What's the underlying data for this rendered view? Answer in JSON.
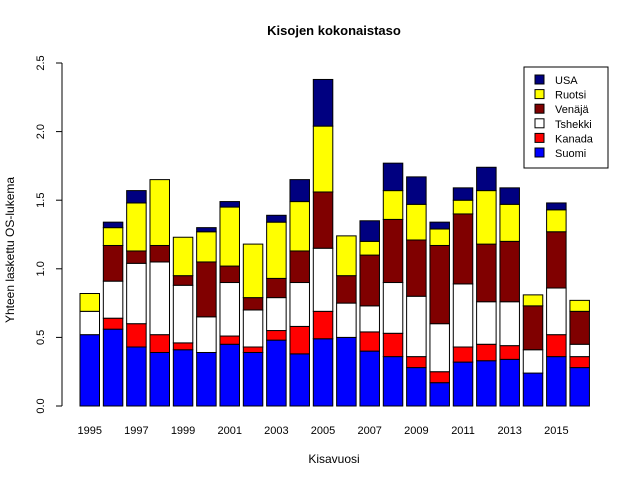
{
  "chart_data": {
    "type": "bar",
    "stacked": true,
    "title": "Kisojen kokonaistaso",
    "xlabel": "Kisavuosi",
    "ylabel": "Yhteen laskettu OS-lukema",
    "ylim": [
      0,
      2.5
    ],
    "yticks": [
      "0.0",
      "0.5",
      "1.0",
      "1.5",
      "2.0",
      "2.5"
    ],
    "categories": [
      "1995",
      "1996",
      "1997",
      "1998",
      "1999",
      "2000",
      "2001",
      "2002",
      "2003",
      "2004",
      "2005",
      "2006",
      "2007",
      "2008",
      "2009",
      "2010",
      "2011",
      "2012",
      "2013",
      "2014",
      "2015",
      "2016"
    ],
    "xtick_labels": [
      "1995",
      "",
      "1997",
      "",
      "1999",
      "",
      "2001",
      "",
      "2003",
      "",
      "2005",
      "",
      "2007",
      "",
      "2009",
      "",
      "2011",
      "",
      "2013",
      "",
      "2015",
      ""
    ],
    "legend_position": "top-right",
    "series": [
      {
        "name": "Suomi",
        "color": "#0000ff",
        "values": [
          0.52,
          0.56,
          0.43,
          0.39,
          0.41,
          0.39,
          0.45,
          0.39,
          0.48,
          0.38,
          0.49,
          0.5,
          0.4,
          0.36,
          0.28,
          0.17,
          0.32,
          0.33,
          0.34,
          0.24,
          0.36,
          0.28
        ]
      },
      {
        "name": "Kanada",
        "color": "#ff0000",
        "values": [
          0.0,
          0.08,
          0.17,
          0.13,
          0.05,
          0.0,
          0.06,
          0.04,
          0.07,
          0.2,
          0.2,
          0.0,
          0.14,
          0.17,
          0.08,
          0.08,
          0.11,
          0.12,
          0.1,
          0.0,
          0.16,
          0.08
        ]
      },
      {
        "name": "Tshekki",
        "color": "#ffffff",
        "values": [
          0.17,
          0.27,
          0.44,
          0.53,
          0.42,
          0.26,
          0.39,
          0.27,
          0.24,
          0.32,
          0.46,
          0.25,
          0.19,
          0.37,
          0.44,
          0.35,
          0.46,
          0.31,
          0.32,
          0.17,
          0.34,
          0.09
        ]
      },
      {
        "name": "Venäjä",
        "color": "#800000",
        "values": [
          0.0,
          0.26,
          0.09,
          0.12,
          0.07,
          0.4,
          0.12,
          0.09,
          0.14,
          0.23,
          0.41,
          0.2,
          0.37,
          0.46,
          0.41,
          0.57,
          0.51,
          0.42,
          0.44,
          0.32,
          0.41,
          0.24
        ]
      },
      {
        "name": "Ruotsi",
        "color": "#ffff00",
        "values": [
          0.13,
          0.13,
          0.35,
          0.48,
          0.28,
          0.22,
          0.43,
          0.39,
          0.41,
          0.36,
          0.48,
          0.29,
          0.1,
          0.21,
          0.26,
          0.12,
          0.1,
          0.39,
          0.27,
          0.08,
          0.16,
          0.08
        ]
      },
      {
        "name": "USA",
        "color": "#000080",
        "values": [
          0.0,
          0.04,
          0.09,
          0.0,
          0.0,
          0.03,
          0.04,
          0.0,
          0.05,
          0.16,
          0.34,
          0.0,
          0.15,
          0.2,
          0.2,
          0.05,
          0.09,
          0.17,
          0.12,
          0.0,
          0.05,
          0.0
        ]
      }
    ]
  }
}
